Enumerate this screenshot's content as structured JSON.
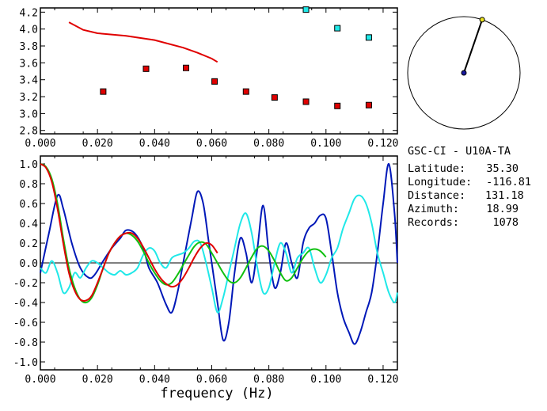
{
  "station": {
    "title": "GSC-CI - U10A-TA",
    "rows": [
      {
        "label": "Latitude:",
        "value": "35.30"
      },
      {
        "label": "Longitude:",
        "value": "-116.81"
      },
      {
        "label": "Distance:",
        "value": "131.18"
      },
      {
        "label": "Azimuth:",
        "value": "18.99"
      },
      {
        "label": "Records:",
        "value": "1078"
      }
    ]
  },
  "azimuth_deg": 18.99,
  "colors": {
    "red": "#e00000",
    "blue": "#0018b8",
    "cyan": "#20e8e8",
    "green": "#10c010",
    "black": "#000000"
  },
  "chart_data": [
    {
      "type": "scatter",
      "title": "",
      "xlabel": "",
      "ylabel": "",
      "xlim": [
        0.0,
        0.125
      ],
      "ylim": [
        2.76,
        4.25
      ],
      "xticks": [
        "0.000",
        "0.020",
        "0.040",
        "0.060",
        "0.080",
        "0.100",
        "0.120"
      ],
      "yticks": [
        "2.8",
        "3.0",
        "3.2",
        "3.4",
        "3.6",
        "3.8",
        "4.0",
        "4.2"
      ],
      "series": [
        {
          "kind": "line",
          "color": "red",
          "x": [
            0.01,
            0.015,
            0.02,
            0.03,
            0.04,
            0.05,
            0.055,
            0.06,
            0.062
          ],
          "y": [
            4.08,
            3.99,
            3.95,
            3.92,
            3.87,
            3.78,
            3.72,
            3.65,
            3.61
          ]
        },
        {
          "kind": "squares",
          "color": "red",
          "x": [
            0.022,
            0.037,
            0.051,
            0.061,
            0.072,
            0.082,
            0.093,
            0.104,
            0.115
          ],
          "y": [
            3.26,
            3.53,
            3.54,
            3.38,
            3.26,
            3.19,
            3.14,
            3.09,
            3.1
          ]
        },
        {
          "kind": "squares",
          "color": "cyan",
          "x": [
            0.093,
            0.104,
            0.115
          ],
          "y": [
            4.23,
            4.01,
            3.9
          ]
        }
      ]
    },
    {
      "type": "line",
      "title": "",
      "xlabel": "frequency (Hz)",
      "ylabel": "",
      "xlim": [
        0.0,
        0.125
      ],
      "ylim": [
        -1.08,
        1.08
      ],
      "xticks": [
        "0.000",
        "0.020",
        "0.040",
        "0.060",
        "0.080",
        "0.100",
        "0.120"
      ],
      "yticks": [
        "1.0",
        "0.8",
        "0.6",
        "0.4",
        "0.2",
        "0.0",
        "-0.2",
        "-0.4",
        "-0.6",
        "-0.8",
        "-1.0"
      ],
      "series": [
        {
          "color": "blue",
          "x": [
            0.0,
            0.003,
            0.006,
            0.008,
            0.011,
            0.014,
            0.017,
            0.019,
            0.022,
            0.025,
            0.028,
            0.03,
            0.033,
            0.036,
            0.038,
            0.041,
            0.044,
            0.046,
            0.048,
            0.05,
            0.053,
            0.055,
            0.057,
            0.059,
            0.062,
            0.064,
            0.066,
            0.068,
            0.07,
            0.072,
            0.074,
            0.076,
            0.078,
            0.08,
            0.082,
            0.084,
            0.086,
            0.088,
            0.09,
            0.092,
            0.094,
            0.096,
            0.098,
            0.1,
            0.102,
            0.104,
            0.106,
            0.108,
            0.11,
            0.112,
            0.114,
            0.116,
            0.118,
            0.12,
            0.122,
            0.124,
            0.125
          ],
          "y": [
            -0.1,
            0.3,
            0.68,
            0.55,
            0.2,
            -0.05,
            -0.15,
            -0.12,
            0.02,
            0.15,
            0.25,
            0.33,
            0.3,
            0.15,
            -0.05,
            -0.2,
            -0.42,
            -0.5,
            -0.3,
            0.0,
            0.45,
            0.72,
            0.6,
            0.2,
            -0.4,
            -0.78,
            -0.6,
            -0.1,
            0.25,
            0.1,
            -0.2,
            0.15,
            0.58,
            0.1,
            -0.25,
            -0.1,
            0.2,
            0.0,
            -0.15,
            0.2,
            0.35,
            0.4,
            0.48,
            0.45,
            0.1,
            -0.3,
            -0.55,
            -0.7,
            -0.82,
            -0.7,
            -0.5,
            -0.3,
            0.1,
            0.6,
            1.0,
            0.5,
            0.0
          ]
        },
        {
          "color": "cyan",
          "x": [
            0.0,
            0.002,
            0.004,
            0.006,
            0.008,
            0.01,
            0.012,
            0.014,
            0.016,
            0.018,
            0.02,
            0.022,
            0.024,
            0.026,
            0.028,
            0.03,
            0.032,
            0.034,
            0.036,
            0.038,
            0.04,
            0.042,
            0.044,
            0.046,
            0.048,
            0.05,
            0.052,
            0.054,
            0.056,
            0.058,
            0.06,
            0.062,
            0.064,
            0.066,
            0.068,
            0.07,
            0.072,
            0.074,
            0.076,
            0.078,
            0.08,
            0.082,
            0.084,
            0.086,
            0.088,
            0.09,
            0.092,
            0.094,
            0.096,
            0.098,
            0.1,
            0.102,
            0.104,
            0.106,
            0.108,
            0.11,
            0.112,
            0.114,
            0.116,
            0.118,
            0.12,
            0.122,
            0.124,
            0.125
          ],
          "y": [
            -0.05,
            -0.1,
            0.02,
            -0.1,
            -0.3,
            -0.25,
            -0.1,
            -0.15,
            -0.05,
            0.02,
            0.0,
            -0.05,
            -0.1,
            -0.12,
            -0.08,
            -0.12,
            -0.1,
            -0.05,
            0.08,
            0.15,
            0.12,
            0.0,
            -0.05,
            0.05,
            0.08,
            0.1,
            0.15,
            0.22,
            0.2,
            0.0,
            -0.25,
            -0.5,
            -0.35,
            -0.1,
            0.15,
            0.4,
            0.5,
            0.3,
            -0.05,
            -0.3,
            -0.25,
            0.0,
            0.2,
            0.1,
            -0.1,
            0.05,
            0.1,
            0.15,
            -0.05,
            -0.2,
            -0.12,
            0.05,
            0.15,
            0.35,
            0.5,
            0.65,
            0.68,
            0.6,
            0.4,
            0.1,
            -0.1,
            -0.3,
            -0.4,
            -0.3
          ]
        },
        {
          "color": "green",
          "x": [
            0.0,
            0.002,
            0.004,
            0.006,
            0.008,
            0.01,
            0.012,
            0.014,
            0.016,
            0.018,
            0.02,
            0.022,
            0.024,
            0.026,
            0.028,
            0.03,
            0.032,
            0.034,
            0.036,
            0.038,
            0.04,
            0.042,
            0.044,
            0.046,
            0.048,
            0.05,
            0.052,
            0.054,
            0.056,
            0.058,
            0.06,
            0.062,
            0.064,
            0.066,
            0.068,
            0.07,
            0.072,
            0.074,
            0.076,
            0.078,
            0.08,
            0.082,
            0.084,
            0.086,
            0.088,
            0.09,
            0.092,
            0.094,
            0.096,
            0.098,
            0.1
          ],
          "y": [
            1.0,
            0.97,
            0.85,
            0.6,
            0.25,
            -0.05,
            -0.25,
            -0.37,
            -0.4,
            -0.35,
            -0.22,
            -0.05,
            0.1,
            0.2,
            0.27,
            0.3,
            0.28,
            0.22,
            0.12,
            0.0,
            -0.1,
            -0.18,
            -0.22,
            -0.2,
            -0.12,
            -0.02,
            0.08,
            0.17,
            0.21,
            0.19,
            0.1,
            0.0,
            -0.1,
            -0.18,
            -0.2,
            -0.15,
            -0.05,
            0.06,
            0.15,
            0.17,
            0.12,
            0.02,
            -0.1,
            -0.18,
            -0.15,
            -0.05,
            0.05,
            0.12,
            0.14,
            0.12,
            0.06
          ]
        },
        {
          "color": "red",
          "x": [
            0.0,
            0.002,
            0.004,
            0.006,
            0.008,
            0.01,
            0.012,
            0.014,
            0.016,
            0.018,
            0.02,
            0.022,
            0.024,
            0.026,
            0.028,
            0.03,
            0.032,
            0.034,
            0.036,
            0.038,
            0.04,
            0.042,
            0.044,
            0.046,
            0.048,
            0.05,
            0.052,
            0.054,
            0.056,
            0.058,
            0.06,
            0.062
          ],
          "y": [
            1.0,
            0.96,
            0.82,
            0.55,
            0.2,
            -0.1,
            -0.28,
            -0.37,
            -0.38,
            -0.33,
            -0.2,
            -0.05,
            0.1,
            0.2,
            0.27,
            0.3,
            0.3,
            0.25,
            0.16,
            0.05,
            -0.06,
            -0.15,
            -0.21,
            -0.24,
            -0.22,
            -0.15,
            -0.05,
            0.06,
            0.15,
            0.2,
            0.18,
            0.1
          ]
        }
      ],
      "zero_line": true
    }
  ]
}
